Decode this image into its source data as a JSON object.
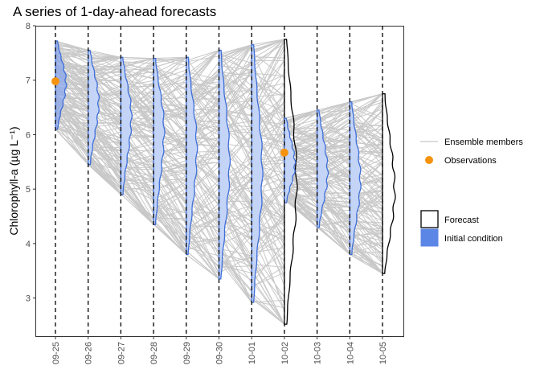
{
  "chart_data": {
    "type": "line",
    "title": "A series of 1-day-ahead forecasts",
    "ylabel": "Chlorophyll-a (µg L⁻¹)",
    "xlabel": "",
    "ylim": [
      2.3,
      8.0
    ],
    "y_ticks": [
      "3",
      "4",
      "5",
      "6",
      "7",
      "8"
    ],
    "categories": [
      "09-25",
      "09-26",
      "09-27",
      "09-28",
      "09-29",
      "09-30",
      "10-01",
      "10-02",
      "10-03",
      "10-04",
      "10-05"
    ],
    "grid": false,
    "legend_position": "right",
    "legend": {
      "line_items": [
        {
          "label": "Ensemble members",
          "color": "#c8c8c8"
        },
        {
          "label": "Observations",
          "color": "#f5930f"
        }
      ],
      "fill_items": [
        {
          "label": "Forecast",
          "fill": "#ffffff",
          "stroke": "#000000"
        },
        {
          "label": "Initial condition",
          "fill": "#5b86e5",
          "stroke": "#5b86e5"
        }
      ]
    },
    "colors": {
      "ensemble": "#c8c8c8",
      "observation": "#f5930f",
      "initial_condition_line": "#3f6fd8",
      "initial_condition_fill": "#c4d4f7",
      "forecast_line": "#000000",
      "vline": "#000000"
    },
    "ensemble_members": 150,
    "observations": [
      {
        "date": "09-25",
        "value": 6.98
      },
      {
        "date": "10-02",
        "value": 5.67
      }
    ],
    "distributions": [
      {
        "date": "09-25",
        "kind": "initial_condition",
        "min": 6.1,
        "max": 7.72,
        "mode": 6.95
      },
      {
        "date": "09-26",
        "kind": "initial_condition",
        "min": 5.45,
        "max": 7.55,
        "mode": 6.6
      },
      {
        "date": "09-27",
        "kind": "initial_condition",
        "min": 4.9,
        "max": 7.42,
        "mode": 6.35
      },
      {
        "date": "09-28",
        "kind": "initial_condition",
        "min": 4.35,
        "max": 7.4,
        "mode": 6.1
      },
      {
        "date": "09-29",
        "kind": "initial_condition",
        "min": 3.8,
        "max": 7.42,
        "mode": 5.75
      },
      {
        "date": "09-30",
        "kind": "initial_condition",
        "min": 3.35,
        "max": 7.55,
        "mode": 5.5
      },
      {
        "date": "10-01",
        "kind": "initial_condition",
        "min": 2.92,
        "max": 7.65,
        "mode": 5.3
      },
      {
        "date": "10-02",
        "kind": "forecast",
        "min": 2.52,
        "max": 7.75,
        "mode": 5.1
      },
      {
        "date": "10-02",
        "kind": "initial_condition",
        "min": 4.75,
        "max": 6.3,
        "mode": 5.45
      },
      {
        "date": "10-03",
        "kind": "initial_condition",
        "min": 4.3,
        "max": 6.45,
        "mode": 5.3
      },
      {
        "date": "10-04",
        "kind": "initial_condition",
        "min": 3.8,
        "max": 6.6,
        "mode": 5.15
      },
      {
        "date": "10-05",
        "kind": "forecast",
        "min": 3.45,
        "max": 6.75,
        "mode": 4.95
      }
    ]
  }
}
